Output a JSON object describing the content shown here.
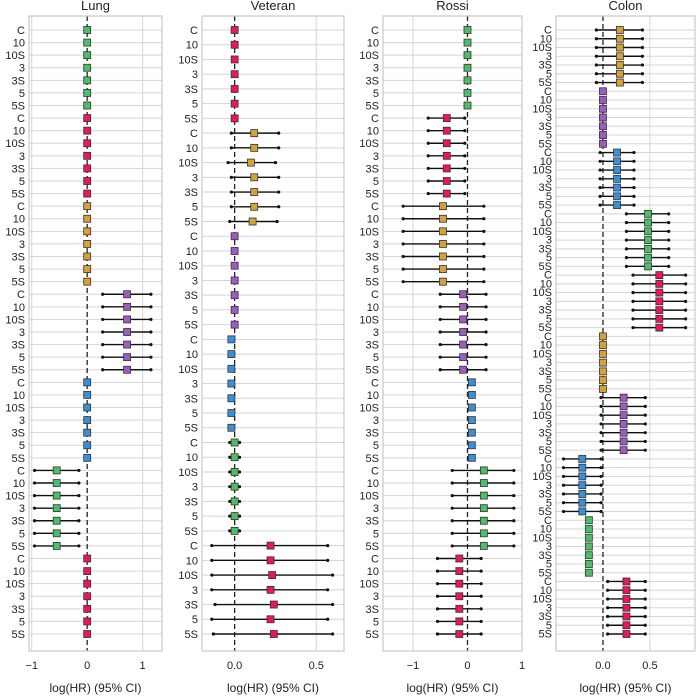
{
  "chart_data": [
    {
      "type": "forest",
      "title": "Lung",
      "xlabel": "log(HR) (95% CI)",
      "xlim": [
        -1.05,
        1.35
      ],
      "xticks": [
        -1,
        0,
        1
      ],
      "xtick_labels": [
        "−1",
        "0",
        "1"
      ],
      "row_labels": [
        "C",
        "10",
        "10S",
        "3",
        "3S",
        "5",
        "5S"
      ],
      "groups": [
        {
          "color": "#4dbd6a",
          "estimates": [
            0,
            0,
            0,
            0,
            0,
            0,
            0
          ],
          "lower": [
            0,
            0,
            0,
            0,
            0,
            0,
            0
          ],
          "upper": [
            0,
            0,
            0,
            0,
            0,
            0,
            0
          ]
        },
        {
          "color": "#e8185a",
          "estimates": [
            0,
            0,
            0,
            0,
            0,
            0,
            0
          ],
          "lower": [
            0,
            0,
            0,
            0,
            0,
            0,
            0
          ],
          "upper": [
            0,
            0,
            0,
            0,
            0,
            0,
            0
          ]
        },
        {
          "color": "#d4a237",
          "estimates": [
            0,
            0,
            0,
            0,
            0,
            0,
            0
          ],
          "lower": [
            0,
            0,
            0,
            0,
            0,
            0,
            0
          ],
          "upper": [
            0,
            0,
            0,
            0,
            0,
            0,
            0
          ]
        },
        {
          "color": "#9d5cc0",
          "estimates": [
            0.72,
            0.72,
            0.72,
            0.72,
            0.72,
            0.72,
            0.72
          ],
          "lower": [
            0.28,
            0.28,
            0.28,
            0.28,
            0.28,
            0.28,
            0.28
          ],
          "upper": [
            1.15,
            1.15,
            1.15,
            1.15,
            1.15,
            1.15,
            1.15
          ]
        },
        {
          "color": "#3a8fd6",
          "estimates": [
            0,
            0,
            0,
            0,
            0,
            0,
            0
          ],
          "lower": [
            0,
            0,
            0,
            0,
            0,
            0,
            0
          ],
          "upper": [
            0,
            0,
            0,
            0,
            0,
            0,
            0
          ]
        },
        {
          "color": "#4dbd6a",
          "estimates": [
            -0.55,
            -0.55,
            -0.55,
            -0.55,
            -0.55,
            -0.55,
            -0.55
          ],
          "lower": [
            -0.95,
            -0.95,
            -0.95,
            -0.95,
            -0.95,
            -0.95,
            -0.95
          ],
          "upper": [
            -0.15,
            -0.15,
            -0.15,
            -0.15,
            -0.15,
            -0.15,
            -0.15
          ]
        },
        {
          "color": "#e8185a",
          "estimates": [
            0,
            0,
            0,
            0,
            0,
            0,
            0
          ],
          "lower": [
            0,
            0,
            0,
            0,
            0,
            0,
            0
          ],
          "upper": [
            0,
            0,
            0,
            0,
            0,
            0,
            0
          ]
        }
      ]
    },
    {
      "type": "forest",
      "title": "Veteran",
      "xlabel": "log(HR) (95% CI)",
      "xlim": [
        -0.2,
        0.67
      ],
      "xticks": [
        0,
        0.5
      ],
      "xtick_labels": [
        "0.0",
        "0.5"
      ],
      "row_labels": [
        "C",
        "10",
        "10S",
        "3",
        "3S",
        "5",
        "5S"
      ],
      "groups": [
        {
          "color": "#e8185a",
          "estimates": [
            0,
            0,
            0,
            0,
            0,
            0,
            0
          ],
          "lower": [
            0,
            0,
            0,
            0,
            0,
            0,
            0
          ],
          "upper": [
            0,
            0,
            0,
            0,
            0,
            0,
            0
          ]
        },
        {
          "color": "#d4a237",
          "estimates": [
            0.12,
            0.12,
            0.1,
            0.12,
            0.12,
            0.12,
            0.11
          ],
          "lower": [
            -0.02,
            -0.02,
            -0.04,
            -0.02,
            -0.02,
            -0.02,
            -0.03
          ],
          "upper": [
            0.27,
            0.27,
            0.25,
            0.27,
            0.27,
            0.27,
            0.26
          ]
        },
        {
          "color": "#9d5cc0",
          "estimates": [
            0,
            0,
            0,
            0,
            0,
            0,
            0
          ],
          "lower": [
            0,
            0,
            0,
            0,
            0,
            0,
            0
          ],
          "upper": [
            0,
            0,
            0,
            0,
            0,
            0,
            0
          ]
        },
        {
          "color": "#3a8fd6",
          "estimates": [
            -0.02,
            -0.02,
            -0.02,
            -0.02,
            -0.02,
            -0.02,
            -0.02
          ],
          "lower": [
            -0.02,
            -0.02,
            -0.02,
            -0.02,
            -0.02,
            -0.02,
            -0.02
          ],
          "upper": [
            -0.02,
            -0.02,
            -0.02,
            -0.02,
            -0.02,
            -0.02,
            -0.02
          ]
        },
        {
          "color": "#4dbd6a",
          "estimates": [
            0,
            0,
            0,
            0,
            0,
            0,
            0
          ],
          "lower": [
            -0.03,
            -0.03,
            -0.03,
            -0.03,
            -0.03,
            -0.03,
            -0.03
          ],
          "upper": [
            0.03,
            0.03,
            0.03,
            0.03,
            0.03,
            0.03,
            0.03
          ]
        },
        {
          "color": "#e8185a",
          "estimates": [
            0.22,
            0.22,
            0.23,
            0.22,
            0.24,
            0.22,
            0.24
          ],
          "lower": [
            -0.14,
            -0.14,
            -0.14,
            -0.14,
            -0.12,
            -0.14,
            -0.13
          ],
          "upper": [
            0.57,
            0.57,
            0.6,
            0.57,
            0.6,
            0.57,
            0.6
          ]
        }
      ]
    },
    {
      "type": "forest",
      "title": "Rossi",
      "xlabel": "log(HR) (95% CI)",
      "xlim": [
        -1.55,
        1.0
      ],
      "xticks": [
        -1,
        0,
        1
      ],
      "xtick_labels": [
        "−1",
        "0",
        "1"
      ],
      "row_labels": [
        "C",
        "10",
        "10S",
        "3",
        "3S",
        "5",
        "5S"
      ],
      "groups": [
        {
          "color": "#4dbd6a",
          "estimates": [
            0,
            0,
            0,
            0,
            0,
            0,
            0
          ],
          "lower": [
            0,
            0,
            0,
            0,
            0,
            0,
            0
          ],
          "upper": [
            0,
            0,
            0,
            0,
            0,
            0,
            0
          ]
        },
        {
          "color": "#e8185a",
          "estimates": [
            -0.38,
            -0.38,
            -0.38,
            -0.38,
            -0.38,
            -0.38,
            -0.38
          ],
          "lower": [
            -0.72,
            -0.72,
            -0.72,
            -0.72,
            -0.72,
            -0.72,
            -0.72
          ],
          "upper": [
            -0.05,
            -0.05,
            -0.05,
            -0.05,
            -0.05,
            -0.05,
            -0.05
          ]
        },
        {
          "color": "#d4a237",
          "estimates": [
            -0.45,
            -0.45,
            -0.45,
            -0.45,
            -0.45,
            -0.45,
            -0.45
          ],
          "lower": [
            -1.18,
            -1.18,
            -1.18,
            -1.18,
            -1.18,
            -1.18,
            -1.18
          ],
          "upper": [
            0.3,
            0.3,
            0.3,
            0.3,
            0.3,
            0.3,
            0.3
          ]
        },
        {
          "color": "#9d5cc0",
          "estimates": [
            -0.08,
            -0.08,
            -0.08,
            -0.08,
            -0.08,
            -0.08,
            -0.08
          ],
          "lower": [
            -0.5,
            -0.5,
            -0.5,
            -0.5,
            -0.5,
            -0.5,
            -0.5
          ],
          "upper": [
            0.34,
            0.34,
            0.34,
            0.34,
            0.34,
            0.34,
            0.34
          ]
        },
        {
          "color": "#3a8fd6",
          "estimates": [
            0.08,
            0.08,
            0.08,
            0.08,
            0.08,
            0.08,
            0.08
          ],
          "lower": [
            0.08,
            0.08,
            0.08,
            0.08,
            0.08,
            0.08,
            0.08
          ],
          "upper": [
            0.08,
            0.08,
            0.08,
            0.08,
            0.08,
            0.08,
            0.08
          ]
        },
        {
          "color": "#4dbd6a",
          "estimates": [
            0.3,
            0.3,
            0.3,
            0.3,
            0.3,
            0.3,
            0.3
          ],
          "lower": [
            -0.28,
            -0.28,
            -0.28,
            -0.28,
            -0.28,
            -0.28,
            -0.28
          ],
          "upper": [
            0.85,
            0.85,
            0.85,
            0.85,
            0.85,
            0.85,
            0.85
          ]
        },
        {
          "color": "#e8185a",
          "estimates": [
            -0.15,
            -0.15,
            -0.15,
            -0.15,
            -0.15,
            -0.15,
            -0.15
          ],
          "lower": [
            -0.55,
            -0.55,
            -0.55,
            -0.55,
            -0.55,
            -0.55,
            -0.55
          ],
          "upper": [
            0.25,
            0.25,
            0.25,
            0.25,
            0.25,
            0.25,
            0.25
          ]
        }
      ]
    },
    {
      "type": "forest",
      "title": "Colon",
      "xlabel": "log(HR) (95% CI)",
      "xlim": [
        -0.5,
        0.98
      ],
      "xticks": [
        0,
        0.5
      ],
      "xtick_labels": [
        "0.0",
        "0.5"
      ],
      "row_labels": [
        "C",
        "10",
        "10S",
        "3",
        "3S",
        "5",
        "5S"
      ],
      "groups": [
        {
          "color": "#d4a237",
          "estimates": [
            0.18,
            0.18,
            0.18,
            0.18,
            0.18,
            0.18,
            0.18
          ],
          "lower": [
            -0.07,
            -0.07,
            -0.07,
            -0.07,
            -0.07,
            -0.07,
            -0.07
          ],
          "upper": [
            0.42,
            0.42,
            0.42,
            0.42,
            0.42,
            0.42,
            0.42
          ]
        },
        {
          "color": "#9d5cc0",
          "estimates": [
            0,
            0,
            0,
            0,
            0,
            0,
            0
          ],
          "lower": [
            0,
            0,
            0,
            0,
            0,
            0,
            0
          ],
          "upper": [
            0,
            0,
            0,
            0,
            0,
            0,
            0
          ]
        },
        {
          "color": "#3a8fd6",
          "estimates": [
            0.15,
            0.15,
            0.15,
            0.15,
            0.15,
            0.15,
            0.15
          ],
          "lower": [
            -0.03,
            -0.03,
            -0.03,
            -0.03,
            -0.03,
            -0.03,
            -0.03
          ],
          "upper": [
            0.33,
            0.33,
            0.33,
            0.33,
            0.33,
            0.33,
            0.33
          ]
        },
        {
          "color": "#4dbd6a",
          "estimates": [
            0.48,
            0.48,
            0.48,
            0.48,
            0.48,
            0.48,
            0.48
          ],
          "lower": [
            0.25,
            0.25,
            0.25,
            0.25,
            0.25,
            0.25,
            0.25
          ],
          "upper": [
            0.7,
            0.7,
            0.7,
            0.7,
            0.7,
            0.7,
            0.7
          ]
        },
        {
          "color": "#e8185a",
          "estimates": [
            0.6,
            0.6,
            0.6,
            0.6,
            0.6,
            0.6,
            0.6
          ],
          "lower": [
            0.32,
            0.32,
            0.32,
            0.32,
            0.32,
            0.32,
            0.32
          ],
          "upper": [
            0.88,
            0.88,
            0.88,
            0.88,
            0.88,
            0.88,
            0.88
          ]
        },
        {
          "color": "#d4a237",
          "estimates": [
            0,
            0,
            0,
            0,
            0,
            0,
            0
          ],
          "lower": [
            0,
            0,
            0,
            0,
            0,
            0,
            0
          ],
          "upper": [
            0,
            0,
            0,
            0,
            0,
            0,
            0
          ]
        },
        {
          "color": "#9d5cc0",
          "estimates": [
            0.22,
            0.22,
            0.22,
            0.22,
            0.22,
            0.22,
            0.22
          ],
          "lower": [
            -0.02,
            -0.02,
            -0.02,
            -0.02,
            -0.02,
            -0.02,
            -0.02
          ],
          "upper": [
            0.45,
            0.45,
            0.45,
            0.45,
            0.45,
            0.45,
            0.45
          ]
        },
        {
          "color": "#3a8fd6",
          "estimates": [
            -0.22,
            -0.22,
            -0.22,
            -0.22,
            -0.22,
            -0.22,
            -0.22
          ],
          "lower": [
            -0.42,
            -0.42,
            -0.42,
            -0.42,
            -0.42,
            -0.42,
            -0.42
          ],
          "upper": [
            -0.02,
            -0.02,
            -0.02,
            -0.02,
            -0.02,
            -0.02,
            -0.02
          ]
        },
        {
          "color": "#4dbd6a",
          "estimates": [
            -0.15,
            -0.15,
            -0.15,
            -0.15,
            -0.15,
            -0.15,
            -0.15
          ],
          "lower": [
            -0.15,
            -0.15,
            -0.15,
            -0.15,
            -0.15,
            -0.15,
            -0.15
          ],
          "upper": [
            -0.15,
            -0.15,
            -0.15,
            -0.15,
            -0.15,
            -0.15,
            -0.15
          ]
        },
        {
          "color": "#e8185a",
          "estimates": [
            0.25,
            0.25,
            0.25,
            0.25,
            0.25,
            0.25,
            0.25
          ],
          "lower": [
            0.05,
            0.05,
            0.05,
            0.05,
            0.05,
            0.05,
            0.05
          ],
          "upper": [
            0.45,
            0.45,
            0.45,
            0.45,
            0.45,
            0.45,
            0.45
          ]
        }
      ]
    }
  ]
}
